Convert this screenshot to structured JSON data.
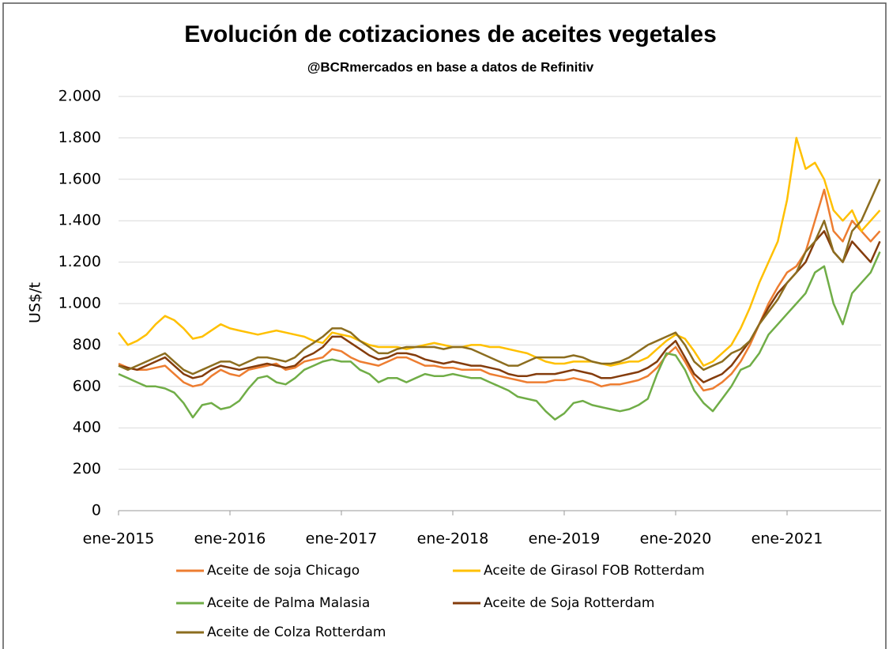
{
  "chart_data": {
    "type": "line",
    "title": "Evolución de cotizaciones de aceites vegetales",
    "subtitle": "@BCRmercados  en base a datos de Refinitiv",
    "y_label": "US$/t",
    "categories": [
      "ene-2015",
      null,
      null,
      null,
      null,
      null,
      null,
      null,
      null,
      null,
      null,
      null,
      "ene-2016",
      null,
      null,
      null,
      null,
      null,
      null,
      null,
      null,
      null,
      null,
      null,
      "ene-2017",
      null,
      null,
      null,
      null,
      null,
      null,
      null,
      null,
      null,
      null,
      null,
      "ene-2018",
      null,
      null,
      null,
      null,
      null,
      null,
      null,
      null,
      null,
      null,
      null,
      "ene-2019",
      null,
      null,
      null,
      null,
      null,
      null,
      null,
      null,
      null,
      null,
      null,
      "ene-2020",
      null,
      null,
      null,
      null,
      null,
      null,
      null,
      null,
      null,
      null,
      null,
      "ene-2021",
      null,
      null,
      null,
      null,
      null,
      null,
      null,
      null,
      null,
      null
    ],
    "series": [
      {
        "name": "Aceite de soja Chicago",
        "color": "#ed7d31",
        "values": [
          710,
          690,
          680,
          680,
          690,
          700,
          660,
          620,
          600,
          610,
          650,
          680,
          660,
          650,
          680,
          690,
          700,
          710,
          680,
          690,
          720,
          730,
          740,
          780,
          770,
          740,
          720,
          710,
          700,
          720,
          740,
          740,
          720,
          700,
          700,
          690,
          690,
          680,
          680,
          680,
          660,
          650,
          640,
          630,
          620,
          620,
          620,
          630,
          630,
          640,
          630,
          620,
          600,
          610,
          610,
          620,
          630,
          650,
          690,
          750,
          790,
          720,
          640,
          580,
          590,
          620,
          660,
          720,
          800,
          900,
          1000,
          1080,
          1150,
          1180,
          1250,
          1400,
          1550,
          1350,
          1300,
          1400,
          1350,
          1300,
          1350
        ]
      },
      {
        "name": "Aceite de Girasol FOB Rotterdam",
        "color": "#ffc000",
        "values": [
          860,
          800,
          820,
          850,
          900,
          940,
          920,
          880,
          830,
          840,
          870,
          900,
          880,
          870,
          860,
          850,
          860,
          870,
          860,
          850,
          840,
          820,
          810,
          860,
          850,
          840,
          820,
          800,
          790,
          790,
          790,
          780,
          790,
          800,
          810,
          800,
          790,
          790,
          800,
          800,
          790,
          790,
          780,
          770,
          760,
          740,
          720,
          710,
          710,
          720,
          720,
          720,
          710,
          700,
          710,
          720,
          720,
          740,
          780,
          820,
          850,
          830,
          770,
          700,
          720,
          760,
          800,
          880,
          980,
          1100,
          1200,
          1300,
          1500,
          1800,
          1650,
          1680,
          1600,
          1450,
          1400,
          1450,
          1350,
          1400,
          1450
        ]
      },
      {
        "name": "Aceite de Palma Malasia",
        "color": "#70ad47",
        "values": [
          660,
          640,
          620,
          600,
          600,
          590,
          570,
          520,
          450,
          510,
          520,
          490,
          500,
          530,
          590,
          640,
          650,
          620,
          610,
          640,
          680,
          700,
          720,
          730,
          720,
          720,
          680,
          660,
          620,
          640,
          640,
          620,
          640,
          660,
          650,
          650,
          660,
          650,
          640,
          640,
          620,
          600,
          580,
          550,
          540,
          530,
          480,
          440,
          470,
          520,
          530,
          510,
          500,
          490,
          480,
          490,
          510,
          540,
          660,
          760,
          750,
          680,
          580,
          520,
          480,
          540,
          600,
          680,
          700,
          760,
          850,
          900,
          950,
          1000,
          1050,
          1150,
          1180,
          1000,
          900,
          1050,
          1100,
          1150,
          1250
        ]
      },
      {
        "name": "Aceite de Soja Rotterdam",
        "color": "#843c0c",
        "values": [
          700,
          690,
          680,
          700,
          720,
          740,
          700,
          660,
          640,
          650,
          680,
          700,
          690,
          680,
          690,
          700,
          710,
          700,
          690,
          700,
          740,
          760,
          790,
          840,
          840,
          810,
          780,
          750,
          730,
          740,
          760,
          760,
          750,
          730,
          720,
          710,
          720,
          710,
          700,
          700,
          690,
          680,
          660,
          650,
          650,
          660,
          660,
          660,
          670,
          680,
          670,
          660,
          640,
          640,
          650,
          660,
          670,
          690,
          720,
          780,
          820,
          740,
          660,
          620,
          640,
          660,
          700,
          760,
          820,
          900,
          980,
          1050,
          1100,
          1150,
          1200,
          1300,
          1350,
          1250,
          1200,
          1300,
          1250,
          1200,
          1300
        ]
      },
      {
        "name": "Aceite de Colza Rotterdam",
        "color": "#8c6d1f",
        "values": [
          700,
          680,
          700,
          720,
          740,
          760,
          720,
          680,
          660,
          680,
          700,
          720,
          720,
          700,
          720,
          740,
          740,
          730,
          720,
          740,
          780,
          810,
          840,
          880,
          880,
          860,
          820,
          790,
          760,
          760,
          780,
          790,
          790,
          790,
          790,
          780,
          790,
          790,
          780,
          760,
          740,
          720,
          700,
          700,
          720,
          740,
          740,
          740,
          740,
          750,
          740,
          720,
          710,
          710,
          720,
          740,
          770,
          800,
          820,
          840,
          860,
          800,
          720,
          680,
          700,
          720,
          760,
          780,
          820,
          900,
          960,
          1020,
          1100,
          1150,
          1250,
          1300,
          1400,
          1250,
          1200,
          1350,
          1400,
          1500,
          1600
        ]
      }
    ],
    "ylim": [
      0,
      2000
    ],
    "yticks": [
      0,
      200,
      400,
      600,
      800,
      {
        "value": 1000,
        "label": "1.000"
      },
      {
        "value": 1200,
        "label": "1.200"
      },
      {
        "value": 1400,
        "label": "1.400"
      },
      {
        "value": 1600,
        "label": "1.600"
      },
      {
        "value": 1800,
        "label": "1.800"
      },
      {
        "value": 2000,
        "label": "2.000"
      }
    ],
    "grid": true
  }
}
